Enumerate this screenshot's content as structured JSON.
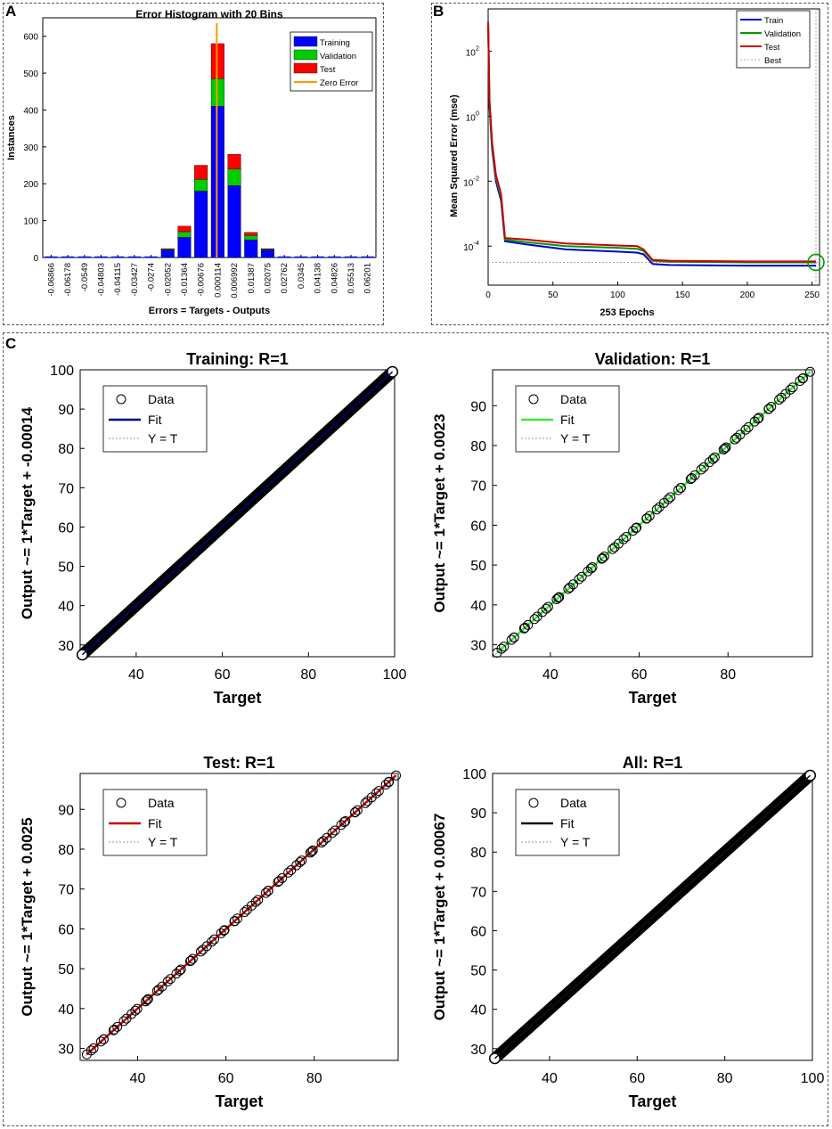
{
  "panels": {
    "a": "A",
    "b": "B",
    "c": "C"
  },
  "colors": {
    "training": "#0000ff",
    "validation": "#00cc00",
    "test": "#ff0000",
    "zero_error": "#ff9900",
    "train_line": "#0000cc",
    "val_line": "#009900",
    "test_line": "#cc0000",
    "best": "#aaaaaa",
    "fit_training": "#00008b",
    "fit_validation": "#33ee33",
    "fit_test": "#cc0000",
    "fit_all": "#111111"
  },
  "chart_data": [
    {
      "type": "bar",
      "title": "Error Histogram with 20 Bins",
      "xlabel": "Errors = Targets - Outputs",
      "ylabel": "Instances",
      "ylim": [
        0,
        650
      ],
      "yticks": [
        0,
        100,
        200,
        300,
        400,
        500,
        600
      ],
      "categories": [
        "-0.06866",
        "-0.06178",
        "-0.0549",
        "-0.04803",
        "-0.04115",
        "-0.03427",
        "-0.0274",
        "-0.02052",
        "-0.01364",
        "-0.00676",
        "0.000114",
        "0.006992",
        "0.01387",
        "0.02075",
        "0.02762",
        "0.0345",
        "0.04138",
        "0.04826",
        "0.05513",
        "0.06201"
      ],
      "series": [
        {
          "name": "Training",
          "values": [
            0,
            0,
            0,
            0,
            0,
            0,
            0,
            20,
            55,
            180,
            410,
            195,
            48,
            20,
            0,
            0,
            0,
            0,
            0,
            0
          ]
        },
        {
          "name": "Validation",
          "values": [
            0,
            0,
            0,
            0,
            0,
            0,
            0,
            2,
            15,
            32,
            75,
            45,
            12,
            2,
            0,
            0,
            0,
            0,
            0,
            0
          ]
        },
        {
          "name": "Test",
          "values": [
            0,
            0,
            0,
            0,
            0,
            0,
            0,
            2,
            15,
            38,
            95,
            40,
            8,
            2,
            0,
            0,
            0,
            0,
            0,
            0
          ]
        }
      ],
      "zero_error_label": "Zero Error",
      "legend": "top-right"
    },
    {
      "type": "line",
      "xlabel": "253 Epochs",
      "ylabel": "Mean Squared Error  (mse)",
      "yscale": "log",
      "xlim": [
        0,
        253
      ],
      "xticks": [
        0,
        50,
        100,
        150,
        200,
        250
      ],
      "ytick_labels": [
        {
          "exp": 2,
          "base": "10",
          "e": "2"
        },
        {
          "exp": 0,
          "base": "10",
          "e": "0"
        },
        {
          "exp": -2,
          "base": "10",
          "e": "-2"
        },
        {
          "exp": -4,
          "base": "10",
          "e": "-4"
        }
      ],
      "ylim_exp": [
        -5.2,
        3.3
      ],
      "series": [
        {
          "name": "Train",
          "x": [
            0,
            1,
            3,
            6,
            10,
            13,
            30,
            60,
            100,
            115,
            120,
            127,
            140,
            200,
            253
          ],
          "logy": [
            2.9,
            0.3,
            -1.0,
            -2.0,
            -2.6,
            -3.85,
            -3.95,
            -4.1,
            -4.17,
            -4.2,
            -4.25,
            -4.55,
            -4.58,
            -4.6,
            -4.6
          ]
        },
        {
          "name": "Validation",
          "x": [
            0,
            1,
            3,
            6,
            10,
            13,
            30,
            60,
            100,
            115,
            120,
            127,
            140,
            200,
            253
          ],
          "logy": [
            2.9,
            0.4,
            -0.9,
            -1.9,
            -2.5,
            -3.8,
            -3.88,
            -4.0,
            -4.05,
            -4.08,
            -4.15,
            -4.45,
            -4.48,
            -4.5,
            -4.5
          ]
        },
        {
          "name": "Test",
          "x": [
            0,
            1,
            3,
            6,
            10,
            13,
            30,
            60,
            100,
            115,
            120,
            127,
            140,
            200,
            253
          ],
          "logy": [
            2.9,
            0.5,
            -0.8,
            -1.8,
            -2.4,
            -3.75,
            -3.8,
            -3.92,
            -3.98,
            -4.0,
            -4.1,
            -4.42,
            -4.45,
            -4.47,
            -4.47
          ]
        }
      ],
      "best_label": "Best",
      "best_epoch": 253,
      "best_logy": -4.5,
      "legend": "top-right"
    },
    {
      "type": "scatter",
      "title": "Training: R=1",
      "xlabel": "Target",
      "ylabel": "Output ~= 1*Target + -0.00014",
      "xlim": [
        27,
        100
      ],
      "ylim": [
        27,
        100
      ],
      "xticks": [
        40,
        60,
        80,
        100
      ],
      "yticks": [
        30,
        40,
        50,
        60,
        70,
        80,
        90,
        100
      ],
      "data_range": [
        27.5,
        99.5
      ],
      "legend": [
        "Data",
        "Fit",
        "Y = T"
      ]
    },
    {
      "type": "scatter",
      "title": "Validation: R=1",
      "xlabel": "Target",
      "ylabel": "Output ~= 1*Target + 0.0023",
      "xlim": [
        27,
        99
      ],
      "ylim": [
        27,
        99
      ],
      "xticks": [
        40,
        60,
        80
      ],
      "yticks": [
        30,
        40,
        50,
        60,
        70,
        80,
        90
      ],
      "data_range": [
        28,
        98.5
      ],
      "legend": [
        "Data",
        "Fit",
        "Y = T"
      ]
    },
    {
      "type": "scatter",
      "title": "Test: R=1",
      "xlabel": "Target",
      "ylabel": "Output ~= 1*Target + 0.0025",
      "xlim": [
        27,
        99
      ],
      "ylim": [
        27,
        99
      ],
      "xticks": [
        40,
        60,
        80
      ],
      "yticks": [
        30,
        40,
        50,
        60,
        70,
        80,
        90
      ],
      "data_range": [
        28.5,
        98.5
      ],
      "legend": [
        "Data",
        "Fit",
        "Y = T"
      ]
    },
    {
      "type": "scatter",
      "title": "All: R=1",
      "xlabel": "Target",
      "ylabel": "Output ~= 1*Target + 0.00067",
      "xlim": [
        27,
        100
      ],
      "ylim": [
        27,
        100
      ],
      "xticks": [
        40,
        60,
        80,
        100
      ],
      "yticks": [
        30,
        40,
        50,
        60,
        70,
        80,
        90,
        100
      ],
      "data_range": [
        27.5,
        99.5
      ],
      "legend": [
        "Data",
        "Fit",
        "Y = T"
      ]
    }
  ]
}
